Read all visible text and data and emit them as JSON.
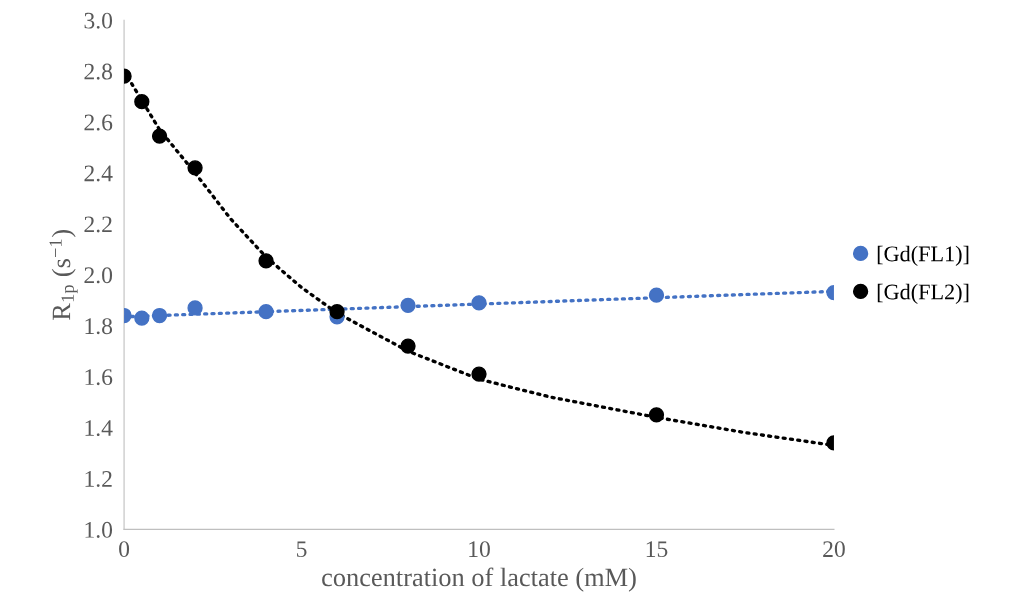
{
  "chart_data": {
    "type": "scatter",
    "xlabel": "concentration of lactate (mM)",
    "ylabel": "R$_{1p}$ (s$^{−1}$)",
    "xlim": [
      0,
      20
    ],
    "xticks": [
      0,
      5,
      10,
      15,
      20
    ],
    "ylim": [
      1.0,
      3.0
    ],
    "yticks": [
      {
        "value": 1.0,
        "label": "1.0"
      },
      {
        "value": 1.2,
        "label": "1.2"
      },
      {
        "value": 1.4,
        "label": "1.4"
      },
      {
        "value": 1.6,
        "label": "1.6"
      },
      {
        "value": 1.8,
        "label": "1.8"
      },
      {
        "value": 2.0,
        "label": "2.0"
      },
      {
        "value": 2.2,
        "label": "2.2"
      },
      {
        "value": 2.4,
        "label": "2.4"
      },
      {
        "value": 2.6,
        "label": "2.6"
      },
      {
        "value": 2.8,
        "label": "2.8"
      },
      {
        "value": 3.0,
        "label": "3.0"
      }
    ],
    "grid": false,
    "legend": "right",
    "marker": "circle",
    "series": [
      {
        "type": "line",
        "line_style": "dotted",
        "marker": "none",
        "color": "#4472c4",
        "x": [
          0,
          20
        ],
        "values": [
          1.835,
          1.935
        ]
      },
      {
        "type": "line",
        "line_style": "dotted",
        "marker": "none",
        "color": "#000000",
        "x": [
          0,
          1,
          2,
          3,
          4,
          5,
          6,
          8,
          10,
          12,
          15,
          17.5,
          20
        ],
        "values": [
          2.8,
          2.57,
          2.4,
          2.22,
          2.07,
          1.95,
          1.85,
          1.7,
          1.59,
          1.52,
          1.44,
          1.38,
          1.33
        ]
      },
      {
        "name": "[Gd(FL1)]",
        "color": "#4472c4",
        "x": [
          0,
          0.5,
          1,
          2,
          4,
          6,
          8,
          10,
          15,
          20
        ],
        "values": [
          1.84,
          1.83,
          1.84,
          1.87,
          1.855,
          1.835,
          1.88,
          1.89,
          1.92,
          1.93
        ]
      },
      {
        "name": "[Gd(FL2)]",
        "color": "#000000",
        "x": [
          0,
          0.5,
          1,
          2,
          4,
          6,
          8,
          10,
          15,
          20
        ],
        "values": [
          2.78,
          2.68,
          2.545,
          2.42,
          2.055,
          1.855,
          1.72,
          1.61,
          1.45,
          1.34
        ]
      }
    ]
  }
}
